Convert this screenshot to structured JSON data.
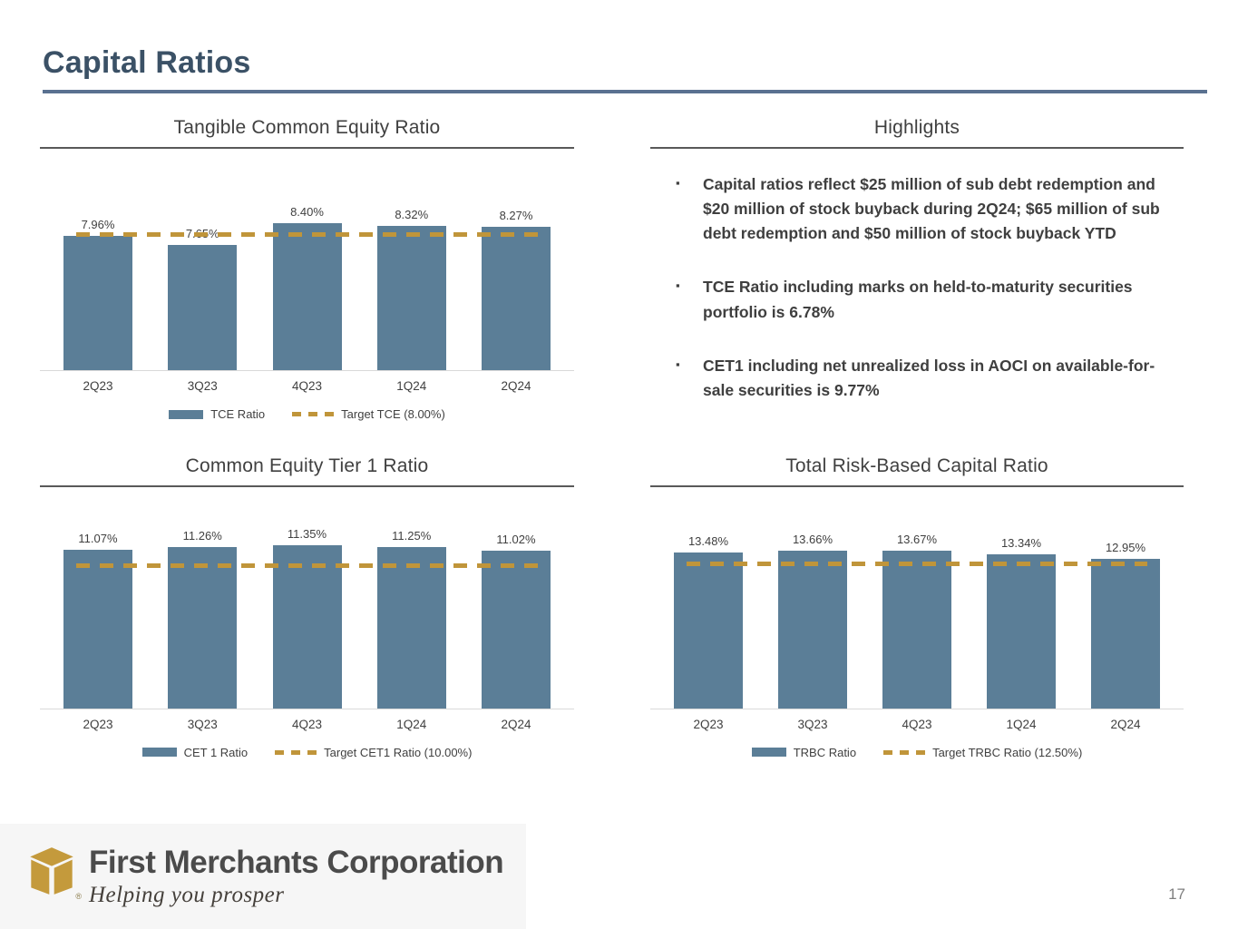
{
  "slide": {
    "title": "Capital Ratios",
    "page_number": "17"
  },
  "colors": {
    "bar_fill": "#5b7e97",
    "target_dash": "#c0953a",
    "header_rule": "#5a7190",
    "title_text": "#3b5166",
    "body_text": "#404040"
  },
  "highlights": {
    "title": "Highlights",
    "bullet_glyph": "▪",
    "bullets": [
      "Capital ratios reflect $25 million of sub debt redemption and $20 million of stock buyback during 2Q24; $65 million of sub debt redemption and $50 million of stock buyback YTD",
      "TCE Ratio including marks on held-to-maturity securities portfolio is 6.78%",
      "CET1 including net unrealized loss in AOCI on available-for-sale securities is 9.77%"
    ]
  },
  "chart_data": [
    {
      "id": "tce",
      "type": "bar",
      "title": "Tangible Common Equity Ratio",
      "categories": [
        "2Q23",
        "3Q23",
        "4Q23",
        "1Q24",
        "2Q24"
      ],
      "values": [
        7.96,
        7.65,
        8.4,
        8.32,
        8.27
      ],
      "value_labels": [
        "7.96%",
        "7.65%",
        "8.40%",
        "8.32%",
        "8.27%"
      ],
      "target_value": 8.0,
      "xlabel": "",
      "ylabel": "",
      "ylim": [
        3.4,
        9.7
      ],
      "grid": false,
      "legend_position": "bottom",
      "legend": [
        {
          "swatch": "bar",
          "label": "TCE Ratio"
        },
        {
          "swatch": "dash",
          "label": "Target TCE (8.00%)"
        }
      ]
    },
    {
      "id": "cet1",
      "type": "bar",
      "title": "Common Equity Tier 1 Ratio",
      "categories": [
        "2Q23",
        "3Q23",
        "4Q23",
        "1Q24",
        "2Q24"
      ],
      "values": [
        11.07,
        11.26,
        11.35,
        11.25,
        11.02
      ],
      "value_labels": [
        "11.07%",
        "11.26%",
        "11.35%",
        "11.25%",
        "11.02%"
      ],
      "target_value": 10.0,
      "xlabel": "",
      "ylabel": "",
      "ylim": [
        0.6,
        12.8
      ],
      "grid": false,
      "legend_position": "bottom",
      "legend": [
        {
          "swatch": "bar",
          "label": "CET 1 Ratio"
        },
        {
          "swatch": "dash",
          "label": "Target CET1 Ratio (10.00%)"
        }
      ]
    },
    {
      "id": "trbc",
      "type": "bar",
      "title": "Total Risk-Based Capital Ratio",
      "categories": [
        "2Q23",
        "3Q23",
        "4Q23",
        "1Q24",
        "2Q24"
      ],
      "values": [
        13.48,
        13.66,
        13.67,
        13.34,
        12.95
      ],
      "value_labels": [
        "13.48%",
        "13.66%",
        "13.67%",
        "13.34%",
        "12.95%"
      ],
      "target_value": 12.5,
      "xlabel": "",
      "ylabel": "",
      "ylim": [
        0,
        16.0
      ],
      "grid": false,
      "legend_position": "bottom",
      "legend": [
        {
          "swatch": "bar",
          "label": "TRBC Ratio"
        },
        {
          "swatch": "dash",
          "label": "Target TRBC Ratio (12.50%)"
        }
      ]
    }
  ],
  "footer": {
    "company": "First Merchants Corporation",
    "tagline": "Helping you prosper",
    "registered_mark": "®"
  }
}
